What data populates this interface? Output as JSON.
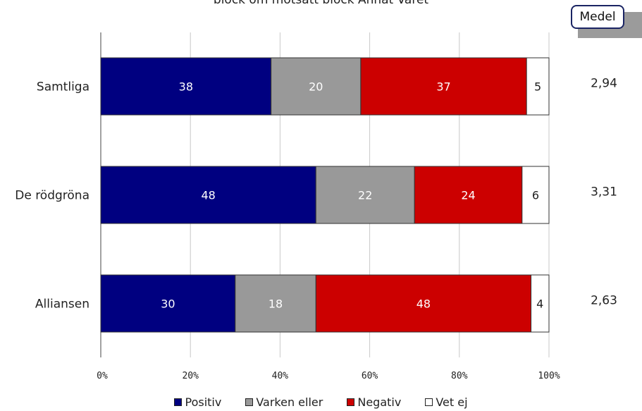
{
  "top_text": "block    om    motsatt block    Annat Varet",
  "medel_label": "Medel",
  "chart_data": {
    "type": "bar",
    "orientation": "horizontal",
    "stacked": true,
    "categories": [
      "Samtliga",
      "De rödgröna",
      "Alliansen"
    ],
    "series": [
      {
        "name": "Positiv",
        "color": "#000080",
        "values": [
          38,
          48,
          30
        ]
      },
      {
        "name": "Varken eller",
        "color": "#999999",
        "values": [
          20,
          22,
          18
        ]
      },
      {
        "name": "Negativ",
        "color": "#cc0000",
        "values": [
          37,
          24,
          48
        ]
      },
      {
        "name": "Vet ej",
        "color": "#ffffff",
        "values": [
          5,
          6,
          4
        ]
      }
    ],
    "medel": [
      "2,94",
      "3,31",
      "2,63"
    ],
    "xlim": [
      0,
      100
    ],
    "xticks": [
      "0%",
      "20%",
      "40%",
      "60%",
      "80%",
      "100%"
    ],
    "grid": true,
    "legend_position": "bottom"
  }
}
